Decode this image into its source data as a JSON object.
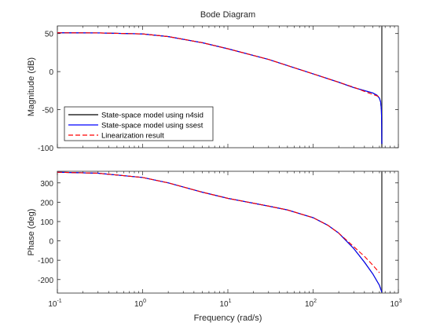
{
  "chart_data": {
    "type": "line",
    "title": "Bode Diagram",
    "xlabel": "Frequency (rad/s)",
    "xscale": "log",
    "xlim": [
      0.1,
      1000
    ],
    "xticks": [
      0.1,
      1,
      10,
      100,
      1000
    ],
    "xtick_labels": [
      {
        "base": "10",
        "exp": "-1"
      },
      {
        "base": "10",
        "exp": "0"
      },
      {
        "base": "10",
        "exp": "1"
      },
      {
        "base": "10",
        "exp": "2"
      },
      {
        "base": "10",
        "exp": "3"
      }
    ],
    "legend_location": "bottom-left of magnitude plot",
    "legend": [
      {
        "label": "State-space model using n4sid",
        "color": "#000000",
        "style": "solid"
      },
      {
        "label": "State-space model using ssest",
        "color": "#0000ff",
        "style": "solid"
      },
      {
        "label": "Linearization result",
        "color": "#ff0000",
        "style": "dashed"
      }
    ],
    "resonance_frequency": 640,
    "panels": [
      {
        "ylabel": "Magnitude (dB)",
        "ylim": [
          -100,
          60
        ],
        "yticks": [
          -100,
          -50,
          0,
          50
        ],
        "series": [
          {
            "name": "State-space model using n4sid",
            "color": "#000000",
            "style": "solid",
            "x": [
              0.1,
              0.3,
              1,
              2,
              5,
              10,
              30,
              100,
              200,
              300,
              400,
              500,
              560,
              600,
              620,
              632,
              638,
              640
            ],
            "y": [
              51,
              50.8,
              49.5,
              46,
              38,
              30,
              16,
              -3,
              -14,
              -21,
              -25,
              -28,
              -31,
              -35,
              -40,
              -50,
              -70,
              -95
            ]
          },
          {
            "name": "State-space model using ssest",
            "color": "#0000ff",
            "style": "solid",
            "x": [
              0.1,
              0.3,
              1,
              2,
              5,
              10,
              30,
              100,
              200,
              300,
              400,
              500,
              560,
              600,
              620,
              632,
              638,
              640
            ],
            "y": [
              51,
              50.8,
              49.5,
              46,
              38,
              30,
              16,
              -3,
              -14,
              -21,
              -25,
              -28,
              -31,
              -35,
              -40,
              -50,
              -70,
              -95
            ]
          },
          {
            "name": "Linearization result",
            "color": "#ff0000",
            "style": "dashed",
            "x": [
              0.1,
              0.3,
              1,
              2,
              5,
              10,
              30,
              100,
              200,
              300,
              400,
              500,
              600
            ],
            "y": [
              51,
              50.8,
              49.5,
              46,
              38,
              30,
              16,
              -3,
              -14,
              -20.5,
              -26,
              -30,
              -33
            ]
          }
        ]
      },
      {
        "ylabel": "Phase (deg)",
        "ylim": [
          -270,
          360
        ],
        "yticks": [
          -200,
          -100,
          0,
          100,
          200,
          300
        ],
        "series": [
          {
            "name": "State-space model using n4sid",
            "color": "#000000",
            "style": "solid",
            "x": [
              0.1,
              0.3,
              1,
              2,
              5,
              10,
              30,
              50,
              100,
              150,
              200,
              300,
              400,
              500,
              600,
              640
            ],
            "y": [
              355,
              350,
              328,
              300,
              252,
              220,
              180,
              160,
              120,
              80,
              40,
              -40,
              -110,
              -170,
              -230,
              -265
            ]
          },
          {
            "name": "State-space model using ssest",
            "color": "#0000ff",
            "style": "solid",
            "x": [
              0.1,
              0.3,
              1,
              2,
              5,
              10,
              30,
              50,
              100,
              150,
              200,
              300,
              400,
              500,
              600,
              640
            ],
            "y": [
              355,
              350,
              328,
              300,
              252,
              220,
              180,
              160,
              120,
              80,
              40,
              -40,
              -110,
              -170,
              -230,
              -265
            ]
          },
          {
            "name": "Linearization result",
            "color": "#ff0000",
            "style": "dashed",
            "x": [
              0.1,
              0.3,
              1,
              2,
              5,
              10,
              30,
              50,
              100,
              150,
              200,
              300,
              400,
              500,
              600
            ],
            "y": [
              355,
              350,
              328,
              300,
              252,
              220,
              180,
              160,
              120,
              80,
              40,
              -30,
              -80,
              -125,
              -165
            ]
          }
        ]
      }
    ]
  }
}
